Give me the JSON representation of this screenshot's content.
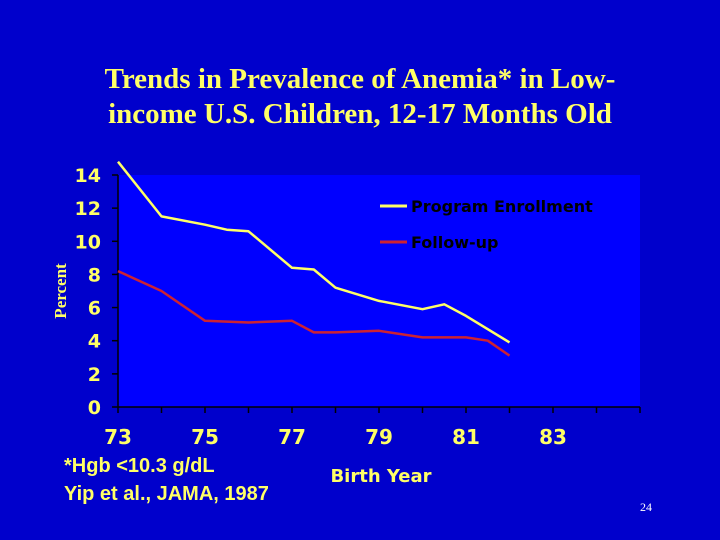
{
  "slide": {
    "title_line1": "Trends in Prevalence of Anemia* in Low-",
    "title_line2": "income U.S. Children, 12-17 Months Old",
    "footnote_line1": "*Hgb <10.3 g/dL",
    "footnote_line2": "Yip et al., JAMA, 1987",
    "page_number": "24"
  },
  "colors": {
    "background": "#0000cc",
    "plot_area": "#0000ff",
    "text": "#ffff66",
    "program_enrollment": "#ffff66",
    "follow_up": "#cc2233"
  },
  "chart_data": {
    "type": "line",
    "title": "Trends in Prevalence of Anemia* in Low-income U.S. Children, 12-17 Months Old",
    "xlabel": "Birth Year",
    "ylabel": "Percent",
    "xlim": [
      73,
      85
    ],
    "ylim": [
      0,
      14
    ],
    "x_ticks": [
      "73",
      "75",
      "77",
      "79",
      "81",
      "83"
    ],
    "y_ticks": [
      "0",
      "2",
      "4",
      "6",
      "8",
      "10",
      "12",
      "14"
    ],
    "grid": false,
    "legend_position": "top-right",
    "series": [
      {
        "name": "Program Enrollment",
        "points": [
          [
            73,
            14.8
          ],
          [
            74,
            11.5
          ],
          [
            75,
            11.0
          ],
          [
            75.5,
            10.7
          ],
          [
            76,
            10.6
          ],
          [
            77,
            8.4
          ],
          [
            77.5,
            8.3
          ],
          [
            78,
            7.2
          ],
          [
            79,
            6.4
          ],
          [
            80,
            5.9
          ],
          [
            80.5,
            6.2
          ],
          [
            81,
            5.5
          ],
          [
            82,
            3.9
          ]
        ]
      },
      {
        "name": "Follow-up",
        "points": [
          [
            73,
            8.2
          ],
          [
            74,
            7.0
          ],
          [
            75,
            5.2
          ],
          [
            76,
            5.1
          ],
          [
            77,
            5.2
          ],
          [
            77.5,
            4.5
          ],
          [
            78,
            4.5
          ],
          [
            79,
            4.6
          ],
          [
            80,
            4.2
          ],
          [
            81,
            4.2
          ],
          [
            81.5,
            4.0
          ],
          [
            82,
            3.1
          ]
        ]
      }
    ]
  }
}
